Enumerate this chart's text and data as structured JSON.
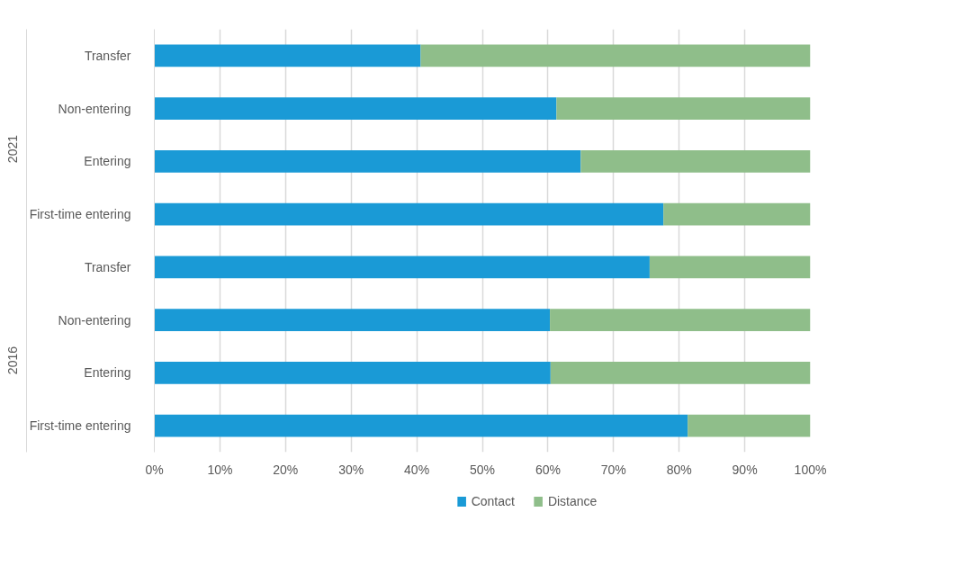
{
  "chart_data": {
    "type": "bar",
    "orientation": "horizontal",
    "stacked": true,
    "categories": [
      "Transfer",
      "Non-entering",
      "Entering",
      "First-time entering",
      "Transfer",
      "Non-entering",
      "Entering",
      "First-time entering"
    ],
    "series": [
      {
        "name": "Contact",
        "color": "#1a9ad6",
        "values": [
          40.6,
          61.3,
          65.0,
          77.6,
          75.5,
          60.3,
          60.4,
          81.3
        ]
      },
      {
        "name": "Distance",
        "color": "#8fbe8a",
        "values": [
          59.4,
          38.7,
          35.0,
          22.4,
          24.5,
          39.7,
          39.6,
          18.7
        ]
      }
    ],
    "annotations": [
      "2021",
      "2016"
    ],
    "xlim": [
      0,
      100
    ],
    "xticks": [
      {
        "value": 0,
        "label": "0%"
      },
      {
        "value": 10,
        "label": "10%"
      },
      {
        "value": 20,
        "label": "20%"
      },
      {
        "value": 30,
        "label": "30%"
      },
      {
        "value": 40,
        "label": "40%"
      },
      {
        "value": 50,
        "label": "50%"
      },
      {
        "value": 60,
        "label": "60%"
      },
      {
        "value": 70,
        "label": "70%"
      },
      {
        "value": 80,
        "label": "80%"
      },
      {
        "value": 90,
        "label": "90%"
      },
      {
        "value": 100,
        "label": "100%"
      }
    ],
    "grid": "x",
    "legend": "bottom"
  }
}
